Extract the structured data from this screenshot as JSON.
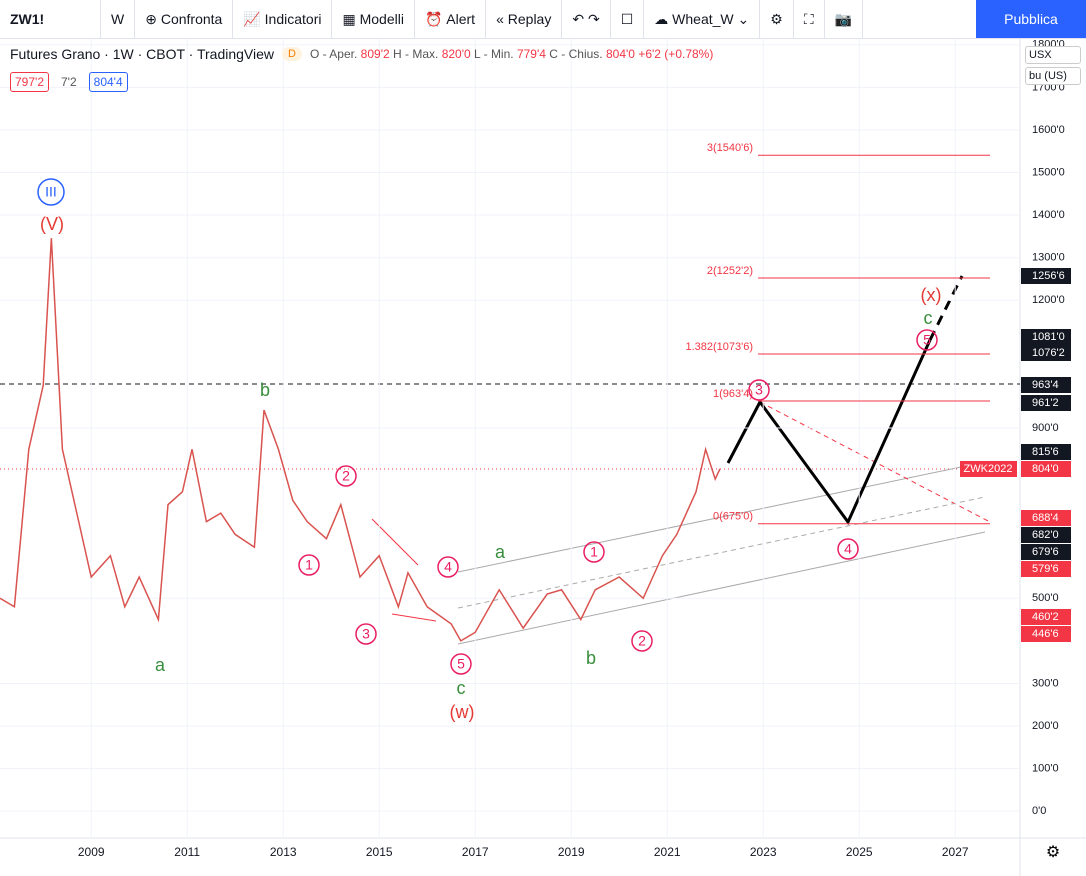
{
  "toolbar": {
    "symbol": "ZW1!",
    "interval": "W",
    "items": [
      "Confronta",
      "Indicatori",
      "Modelli",
      "Alert",
      "Replay"
    ],
    "layout": "Wheat_W",
    "publish": "Pubblica"
  },
  "legend": {
    "title": "Futures Grano · 1W · CBOT · TradingView",
    "badge": "D",
    "ohlc": [
      {
        "label": "O - Aper.",
        "value": "809'2"
      },
      {
        "label": "H - Max.",
        "value": "820'0"
      },
      {
        "label": "L - Min.",
        "value": "779'4"
      },
      {
        "label": "C - Chius.",
        "value": "804'0"
      }
    ],
    "change": "+6'2 (+0.78%)",
    "bid": "797'2",
    "spread": "7'2",
    "ask": "804'4"
  },
  "axis_controls": {
    "currency": "USX",
    "unit": "bu (US)"
  },
  "chart_data": {
    "type": "line",
    "color": "#d9534f",
    "x": [
      2007.1,
      2007.4,
      2007.7,
      2008.0,
      2008.17,
      2008.4,
      2008.7,
      2009.0,
      2009.4,
      2009.7,
      2010.0,
      2010.4,
      2010.6,
      2010.9,
      2011.1,
      2011.4,
      2011.7,
      2012.0,
      2012.4,
      2012.6,
      2012.9,
      2013.2,
      2013.5,
      2013.9,
      2014.2,
      2014.6,
      2015.0,
      2015.4,
      2015.6,
      2016.0,
      2016.5,
      2016.7,
      2017.0,
      2017.5,
      2018.0,
      2018.5,
      2018.8,
      2019.2,
      2019.5,
      2020.0,
      2020.5,
      2020.9,
      2021.2,
      2021.6,
      2021.8,
      2022.0,
      2022.1
    ],
    "values": [
      500,
      480,
      850,
      1000,
      1346,
      850,
      700,
      550,
      600,
      480,
      550,
      450,
      720,
      750,
      850,
      680,
      700,
      650,
      620,
      942,
      850,
      730,
      680,
      640,
      720,
      550,
      600,
      480,
      560,
      480,
      440,
      400,
      420,
      520,
      430,
      510,
      520,
      450,
      520,
      550,
      500,
      600,
      650,
      750,
      850,
      780,
      804
    ],
    "xlim": [
      2007.1,
      2028.35
    ],
    "xticks": [
      2009,
      2011,
      2013,
      2015,
      2017,
      2019,
      2021,
      2023,
      2025,
      2027
    ],
    "ylim": [
      -63,
      1816
    ],
    "yticks": [
      {
        "value": 0,
        "label": "0'0"
      },
      {
        "value": 100,
        "label": "100'0"
      },
      {
        "value": 200,
        "label": "200'0"
      },
      {
        "value": 300,
        "label": "300'0"
      },
      {
        "value": 500,
        "label": "500'0"
      },
      {
        "value": 900,
        "label": "900'0"
      },
      {
        "value": 1200,
        "label": "1200'0"
      },
      {
        "value": 1300,
        "label": "1300'0"
      },
      {
        "value": 1400,
        "label": "1400'0"
      },
      {
        "value": 1500,
        "label": "1500'0"
      },
      {
        "value": 1600,
        "label": "1600'0"
      },
      {
        "value": 1700,
        "label": "1700'0"
      },
      {
        "value": 1800,
        "label": "1800'0"
      }
    ],
    "fib_levels": [
      {
        "value": 1540.75,
        "label": "3(1540'6)"
      },
      {
        "value": 1252.25,
        "label": "2(1252'2)"
      },
      {
        "value": 1073.75,
        "label": "1.382(1073'6)"
      },
      {
        "value": 963.5,
        "label": "1(963'4)"
      },
      {
        "value": 675,
        "label": "0(675'0)"
      }
    ],
    "price_tags": [
      {
        "label": "1256'6",
        "color": "#131722"
      },
      {
        "label": "1081'0",
        "color": "#131722"
      },
      {
        "label": "1076'2",
        "color": "#131722"
      },
      {
        "label": "963'4",
        "color": "#131722"
      },
      {
        "label": "961'2",
        "color": "#131722"
      },
      {
        "label": "815'6",
        "color": "#131722"
      },
      {
        "label": "804'0",
        "color": "#f23645"
      },
      {
        "label": "688'4",
        "color": "#f23645"
      },
      {
        "label": "682'0",
        "color": "#131722"
      },
      {
        "label": "679'6",
        "color": "#131722"
      },
      {
        "label": "579'6",
        "color": "#f23645"
      },
      {
        "label": "460'2",
        "color": "#f23645"
      },
      {
        "label": "446'6",
        "color": "#f23645"
      }
    ],
    "last_symbol": "ZWK2022",
    "annotations": [
      {
        "text": "III",
        "color": "#2962ff",
        "circled": true
      },
      {
        "text": "(V)",
        "color": "#e53935",
        "circled": false
      },
      {
        "text": "b",
        "color": "#388e3c",
        "circled": false
      },
      {
        "text": "a",
        "color": "#388e3c",
        "circled": false
      },
      {
        "text": "2",
        "color": "#e91e63",
        "circled": true
      },
      {
        "text": "1",
        "color": "#e91e63",
        "circled": true
      },
      {
        "text": "3",
        "color": "#e91e63",
        "circled": true
      },
      {
        "text": "4",
        "color": "#e91e63",
        "circled": true
      },
      {
        "text": "5",
        "color": "#e91e63",
        "circled": true
      },
      {
        "text": "c",
        "color": "#388e3c",
        "circled": false
      },
      {
        "text": "(w)",
        "color": "#e53935",
        "circled": false
      },
      {
        "text": "a",
        "color": "#388e3c",
        "circled": false
      },
      {
        "text": "1",
        "color": "#e91e63",
        "circled": true
      },
      {
        "text": "b",
        "color": "#388e3c",
        "circled": false
      },
      {
        "text": "2",
        "color": "#e91e63",
        "circled": true
      },
      {
        "text": "3",
        "color": "#e91e63",
        "circled": true
      },
      {
        "text": "4",
        "color": "#e91e63",
        "circled": true
      },
      {
        "text": "5",
        "color": "#e91e63",
        "circled": true
      },
      {
        "text": "c",
        "color": "#388e3c",
        "circled": false
      },
      {
        "text": "(x)",
        "color": "#e53935",
        "circled": false
      }
    ]
  }
}
